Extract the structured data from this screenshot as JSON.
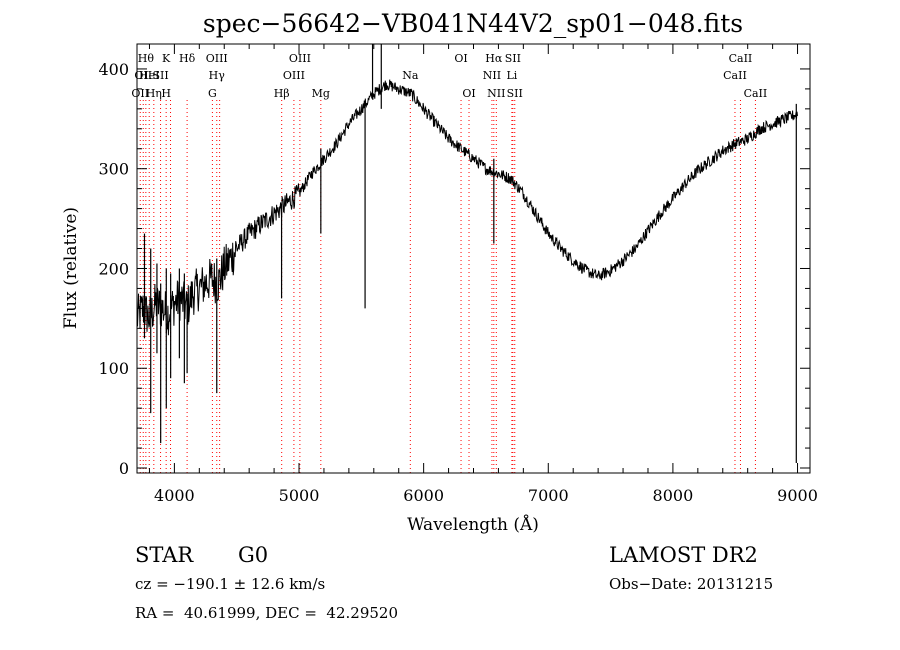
{
  "chart_data": {
    "type": "line",
    "title": "spec−56642−VB041N44V2_sp01−048.fits",
    "xlabel": "Wavelength (Å)",
    "ylabel": "Flux (relative)",
    "xlim": [
      3700,
      9100
    ],
    "ylim": [
      -5,
      425
    ],
    "x_ticks": [
      {
        "value": 4000,
        "label": "4000"
      },
      {
        "value": 5000,
        "label": "5000"
      },
      {
        "value": 6000,
        "label": "6000"
      },
      {
        "value": 7000,
        "label": "7000"
      },
      {
        "value": 8000,
        "label": "8000"
      },
      {
        "value": 9000,
        "label": "9000"
      }
    ],
    "y_ticks": [
      {
        "value": 0,
        "label": "0"
      },
      {
        "value": 100,
        "label": "100"
      },
      {
        "value": 200,
        "label": "200"
      },
      {
        "value": 300,
        "label": "300"
      },
      {
        "value": 400,
        "label": "400"
      }
    ],
    "grid": false,
    "series": [
      {
        "x": [
          3700,
          3750,
          3800,
          3850,
          3900,
          3950,
          4000,
          4050,
          4100,
          4150,
          4200,
          4250,
          4300,
          4350,
          4400,
          4450,
          4500,
          4600,
          4700,
          4800,
          4900,
          5000,
          5100,
          5200,
          5300,
          5400,
          5500,
          5600,
          5700,
          5800,
          5900,
          6000,
          6100,
          6200,
          6300,
          6400,
          6500,
          6600,
          6700,
          6800,
          6900,
          7000,
          7100,
          7200,
          7300,
          7400,
          7500,
          7600,
          7700,
          7800,
          7900,
          8000,
          8100,
          8200,
          8300,
          8400,
          8500,
          8600,
          8700,
          8800,
          8900,
          9000
        ],
        "y": [
          150,
          160,
          150,
          165,
          160,
          155,
          165,
          170,
          160,
          175,
          180,
          185,
          190,
          185,
          200,
          210,
          220,
          235,
          245,
          255,
          265,
          275,
          295,
          310,
          325,
          345,
          360,
          375,
          385,
          380,
          375,
          360,
          345,
          330,
          320,
          310,
          300,
          295,
          290,
          275,
          255,
          235,
          220,
          208,
          198,
          192,
          198,
          208,
          220,
          238,
          255,
          270,
          285,
          298,
          308,
          318,
          325,
          330,
          340,
          345,
          350,
          355
        ]
      }
    ],
    "spikes": [
      {
        "x": 3760,
        "low": 130,
        "high": 235
      },
      {
        "x": 3810,
        "low": 55,
        "high": 220
      },
      {
        "x": 3860,
        "low": 115,
        "high": 205
      },
      {
        "x": 3890,
        "low": 25,
        "high": 185
      },
      {
        "x": 3935,
        "low": 60,
        "high": 200
      },
      {
        "x": 3970,
        "low": 90,
        "high": 195
      },
      {
        "x": 4040,
        "low": 110,
        "high": 200
      },
      {
        "x": 4080,
        "low": 85,
        "high": 195
      },
      {
        "x": 4102,
        "low": 95,
        "high": 175
      },
      {
        "x": 4340,
        "low": 75,
        "high": 210
      },
      {
        "x": 4860,
        "low": 170,
        "high": 265
      },
      {
        "x": 5175,
        "low": 235,
        "high": 320
      },
      {
        "x": 5530,
        "low": 160,
        "high": 365
      },
      {
        "x": 5590,
        "low": 370,
        "high": 425
      },
      {
        "x": 5660,
        "low": 360,
        "high": 425
      },
      {
        "x": 6563,
        "low": 225,
        "high": 310
      },
      {
        "x": 8990,
        "low": 5,
        "high": 365
      }
    ],
    "lines": [
      {
        "x": 3726,
        "labels": [
          {
            "text": "OII",
            "tier": 2
          }
        ]
      },
      {
        "x": 3750,
        "labels": [
          {
            "text": "OII",
            "tier": 1
          }
        ]
      },
      {
        "x": 3771,
        "labels": [
          {
            "text": "Hθ",
            "tier": 0
          }
        ]
      },
      {
        "x": 3798,
        "labels": [
          {
            "text": "HeI",
            "tier": 1
          }
        ]
      },
      {
        "x": 3835,
        "labels": [
          {
            "text": "Hη",
            "tier": 2
          }
        ]
      },
      {
        "x": 3889,
        "labels": [
          {
            "text": "SII",
            "tier": 1
          }
        ]
      },
      {
        "x": 3934,
        "labels": [
          {
            "text": "K",
            "tier": 0
          },
          {
            "text": "H",
            "tier": 2
          }
        ]
      },
      {
        "x": 3969,
        "labels": []
      },
      {
        "x": 4102,
        "labels": [
          {
            "text": "Hδ",
            "tier": 0
          }
        ]
      },
      {
        "x": 4305,
        "labels": [
          {
            "text": "G",
            "tier": 2
          }
        ]
      },
      {
        "x": 4340,
        "labels": [
          {
            "text": "OIII",
            "tier": 0
          },
          {
            "text": "Hγ",
            "tier": 1
          }
        ]
      },
      {
        "x": 4363,
        "labels": []
      },
      {
        "x": 4861,
        "labels": [
          {
            "text": "Hβ",
            "tier": 2
          }
        ]
      },
      {
        "x": 4959,
        "labels": [
          {
            "text": "OIII",
            "tier": 1
          }
        ]
      },
      {
        "x": 5007,
        "labels": [
          {
            "text": "OIII",
            "tier": 0
          }
        ]
      },
      {
        "x": 5175,
        "labels": [
          {
            "text": "Mg",
            "tier": 2
          }
        ]
      },
      {
        "x": 5893,
        "labels": [
          {
            "text": "Na",
            "tier": 1
          }
        ]
      },
      {
        "x": 6300,
        "labels": [
          {
            "text": "OI",
            "tier": 0
          }
        ]
      },
      {
        "x": 6364,
        "labels": [
          {
            "text": "OI",
            "tier": 2
          }
        ]
      },
      {
        "x": 6548,
        "labels": [
          {
            "text": "NII",
            "tier": 1
          }
        ]
      },
      {
        "x": 6563,
        "labels": [
          {
            "text": "Hα",
            "tier": 0
          }
        ]
      },
      {
        "x": 6583,
        "labels": [
          {
            "text": "NII",
            "tier": 2
          }
        ]
      },
      {
        "x": 6708,
        "labels": [
          {
            "text": "Li",
            "tier": 1
          }
        ]
      },
      {
        "x": 6716,
        "labels": [
          {
            "text": "SII",
            "tier": 0
          }
        ]
      },
      {
        "x": 6731,
        "labels": [
          {
            "text": "SII",
            "tier": 2
          }
        ]
      },
      {
        "x": 8498,
        "labels": [
          {
            "text": "CaII",
            "tier": 1
          }
        ]
      },
      {
        "x": 8542,
        "labels": [
          {
            "text": "CaII",
            "tier": 0
          }
        ]
      },
      {
        "x": 8662,
        "labels": [
          {
            "text": "CaII",
            "tier": 2
          }
        ]
      }
    ],
    "colors": {
      "spectrum": "#000000",
      "line_markers": "#ff0000"
    }
  },
  "info": {
    "class": "STAR",
    "subclass": "G0",
    "survey": "LAMOST DR2",
    "cz": "cz = −190.1 ± 12.6 km/s",
    "obs_date": "Obs−Date: 20131215",
    "coords": "RA =  40.61999, DEC =  42.29520"
  }
}
